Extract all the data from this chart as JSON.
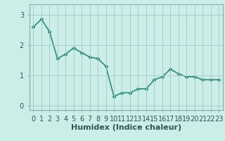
{
  "x": [
    0,
    1,
    2,
    3,
    4,
    5,
    6,
    7,
    8,
    9,
    10,
    11,
    12,
    13,
    14,
    15,
    16,
    17,
    18,
    19,
    20,
    21,
    22,
    23
  ],
  "y": [
    2.6,
    2.85,
    2.45,
    1.55,
    1.7,
    1.9,
    1.75,
    1.6,
    1.55,
    1.3,
    0.3,
    0.42,
    0.42,
    0.55,
    0.55,
    0.85,
    0.95,
    1.2,
    1.05,
    0.95,
    0.95,
    0.85,
    0.85,
    0.85
  ],
  "line_color": "#2e8b7a",
  "marker": "D",
  "marker_size": 2.5,
  "bg_color": "#cceee8",
  "grid_color": "#aacccc",
  "xlabel": "Humidex (Indice chaleur)",
  "xlabel_fontsize": 8,
  "ylim": [
    -0.15,
    3.35
  ],
  "xlim": [
    -0.5,
    23.5
  ],
  "yticks": [
    0,
    1,
    2,
    3
  ],
  "tick_fontsize": 7,
  "linewidth": 1.2
}
